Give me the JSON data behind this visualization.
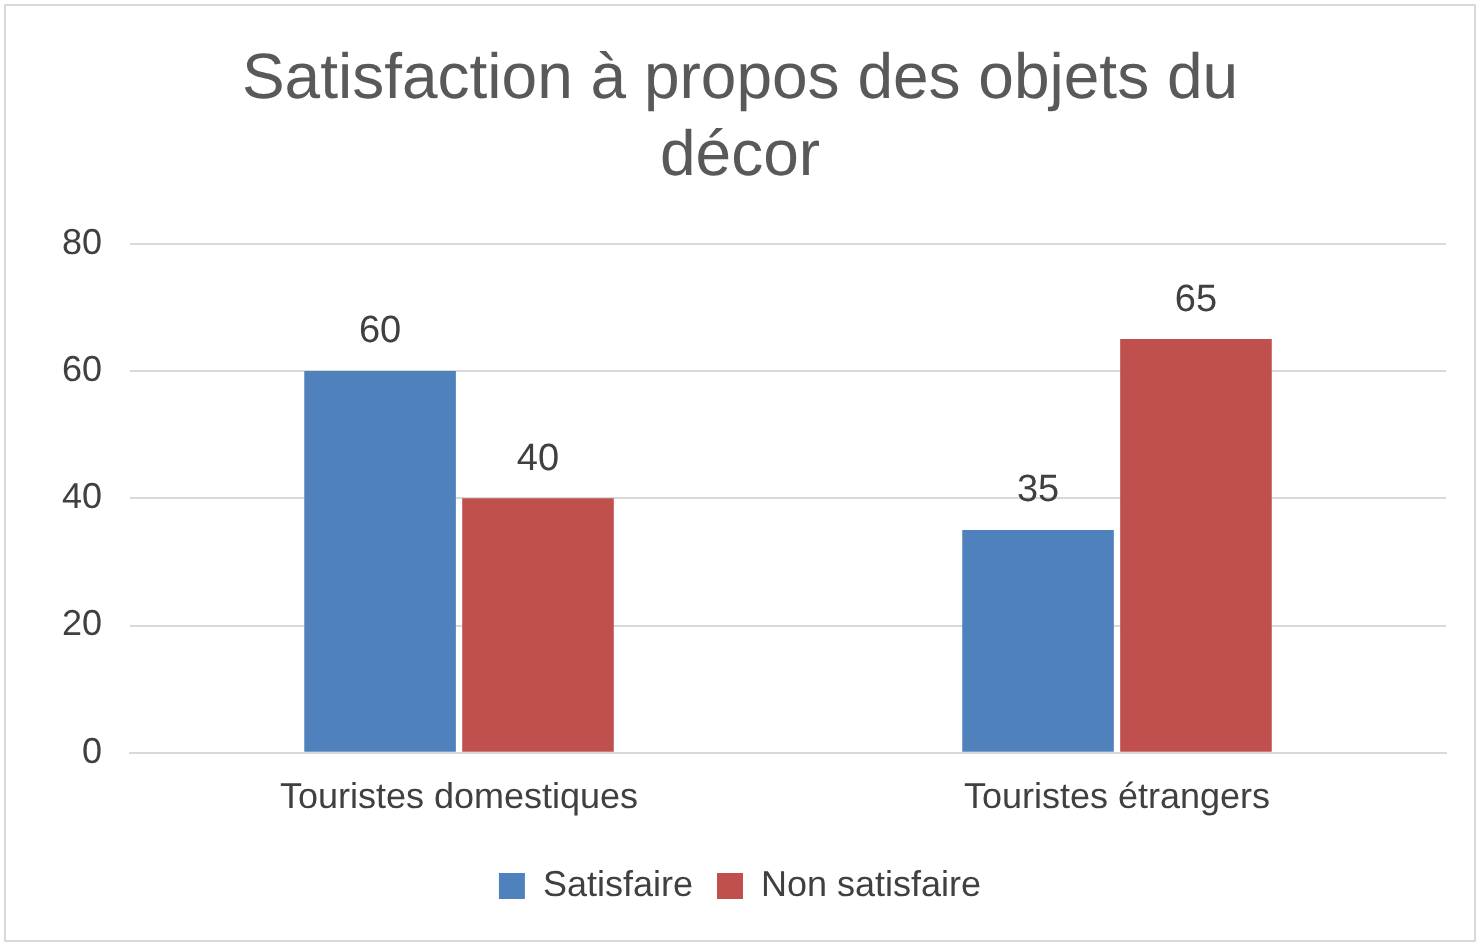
{
  "chart_data": {
    "type": "bar",
    "title": "Satisfaction à propos des objets du décor",
    "categories": [
      "Touristes domestiques",
      "Touristes étrangers"
    ],
    "series": [
      {
        "name": "Satisfaire",
        "color": "#4f81bd",
        "values": [
          60,
          35
        ]
      },
      {
        "name": "Non satisfaire",
        "color": "#c0504d",
        "values": [
          40,
          65
        ]
      }
    ],
    "ylim": [
      0,
      80
    ],
    "yticks": [
      0,
      20,
      40,
      60,
      80
    ],
    "grid": "y",
    "legend": "bottom",
    "data_labels": true
  }
}
